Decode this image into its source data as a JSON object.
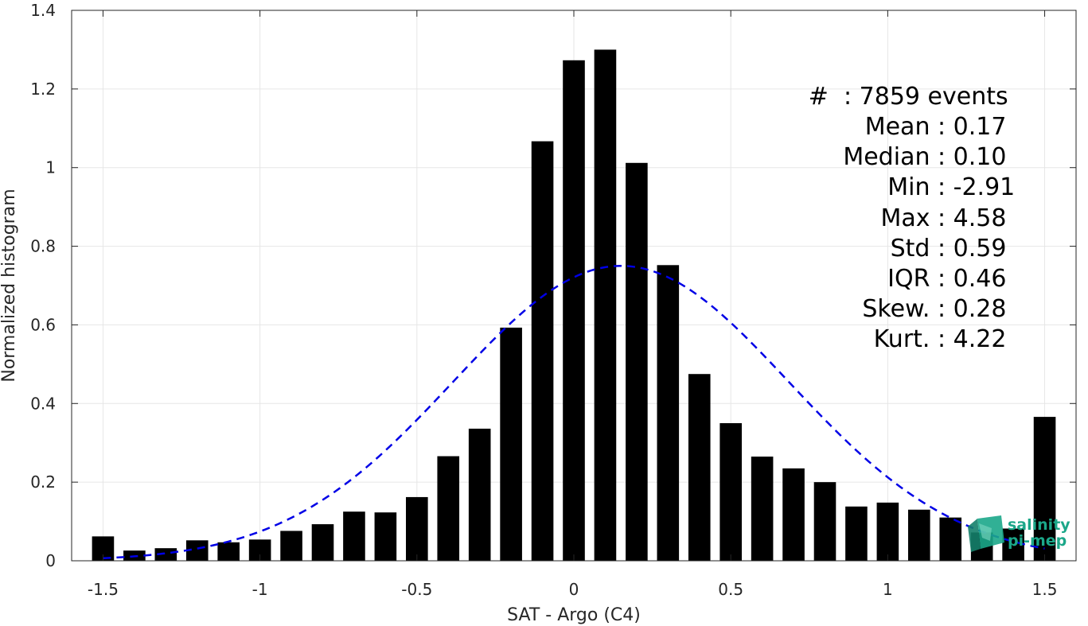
{
  "chart_data": {
    "type": "bar",
    "xlabel": "SAT - Argo (C4)",
    "ylabel": "Normalized histogram",
    "xlim": [
      -1.6,
      1.6
    ],
    "ylim": [
      0,
      1.4
    ],
    "grid": true,
    "x_ticks": [
      -1.5,
      -1,
      -0.5,
      0,
      0.5,
      1,
      1.5
    ],
    "x_tick_labels": [
      "-1.5",
      "-1",
      "-0.5",
      "0",
      "0.5",
      "1",
      "1.5"
    ],
    "y_ticks": [
      0,
      0.2,
      0.4,
      0.6,
      0.8,
      1,
      1.2,
      1.4
    ],
    "y_tick_labels": [
      "0",
      "0.2",
      "0.4",
      "0.6",
      "0.8",
      "1",
      "1.2",
      "1.4"
    ],
    "bar_width": 0.07,
    "bars": {
      "x": [
        -1.5,
        -1.4,
        -1.3,
        -1.2,
        -1.1,
        -1.0,
        -0.9,
        -0.8,
        -0.7,
        -0.6,
        -0.5,
        -0.4,
        -0.3,
        -0.2,
        -0.1,
        0.0,
        0.1,
        0.2,
        0.3,
        0.4,
        0.5,
        0.6,
        0.7,
        0.8,
        0.9,
        1.0,
        1.1,
        1.2,
        1.3,
        1.4,
        1.5
      ],
      "values": [
        0.062,
        0.026,
        0.032,
        0.052,
        0.047,
        0.054,
        0.076,
        0.093,
        0.125,
        0.123,
        0.162,
        0.266,
        0.336,
        0.593,
        1.067,
        1.273,
        1.3,
        1.012,
        0.752,
        0.475,
        0.35,
        0.265,
        0.235,
        0.2,
        0.138,
        0.148,
        0.13,
        0.11,
        0.072,
        0.082,
        0.366
      ],
      "color": "#000000"
    },
    "fit_curve": {
      "kind": "normal",
      "mean": 0.15,
      "std": 0.535,
      "peak": 0.75,
      "color": "#0000e6",
      "style": "dashed"
    },
    "annotations": [
      {
        "label": "#  ",
        "value": ": 7859 events"
      },
      {
        "label": "Mean ",
        "value": ": 0.17"
      },
      {
        "label": "Median ",
        "value": ": 0.10"
      },
      {
        "label": "Min ",
        "value": ": -2.91"
      },
      {
        "label": "Max ",
        "value": ": 4.58"
      },
      {
        "label": "Std ",
        "value": ": 0.59"
      },
      {
        "label": "IQR ",
        "value": ": 0.46"
      },
      {
        "label": "Skew. ",
        "value": ": 0.28"
      },
      {
        "label": "Kurt. ",
        "value": ": 4.22"
      }
    ]
  },
  "logo": {
    "line1": "salinity",
    "line2": "pi-mep",
    "color": "#1ba789"
  }
}
